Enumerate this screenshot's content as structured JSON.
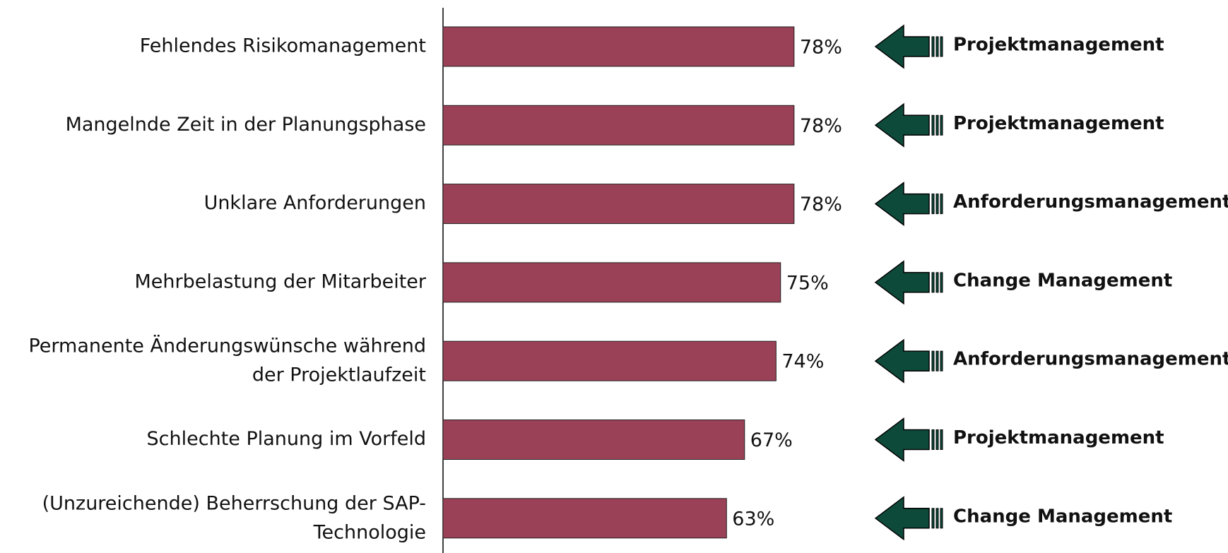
{
  "chart_data": {
    "type": "bar",
    "orientation": "horizontal",
    "categories": [
      "Fehlendes Risikomanagement",
      "Mangelnde Zeit in der Planungsphase",
      "Unklare Anforderungen",
      "Mehrbelastung der Mitarbeiter",
      "Permanente Änderungswünsche während\nder Projektlaufzeit",
      "Schlechte Planung im Vorfeld",
      "(Unzureichende) Beherrschung der SAP-\nTechnologie"
    ],
    "values": [
      78,
      78,
      78,
      75,
      74,
      67,
      63
    ],
    "value_labels": [
      "78%",
      "78%",
      "78%",
      "75%",
      "74%",
      "67%",
      "63%"
    ],
    "annotations": [
      "Projektmanagement",
      "Projektmanagement",
      "Anforderungsmanagement",
      "Change Management",
      "Anforderungsmanagement",
      "Projektmanagement",
      "Change Management"
    ],
    "color": "#9b4157",
    "arrow_color": "#0d4a3a",
    "xlim": [
      0,
      100
    ]
  }
}
